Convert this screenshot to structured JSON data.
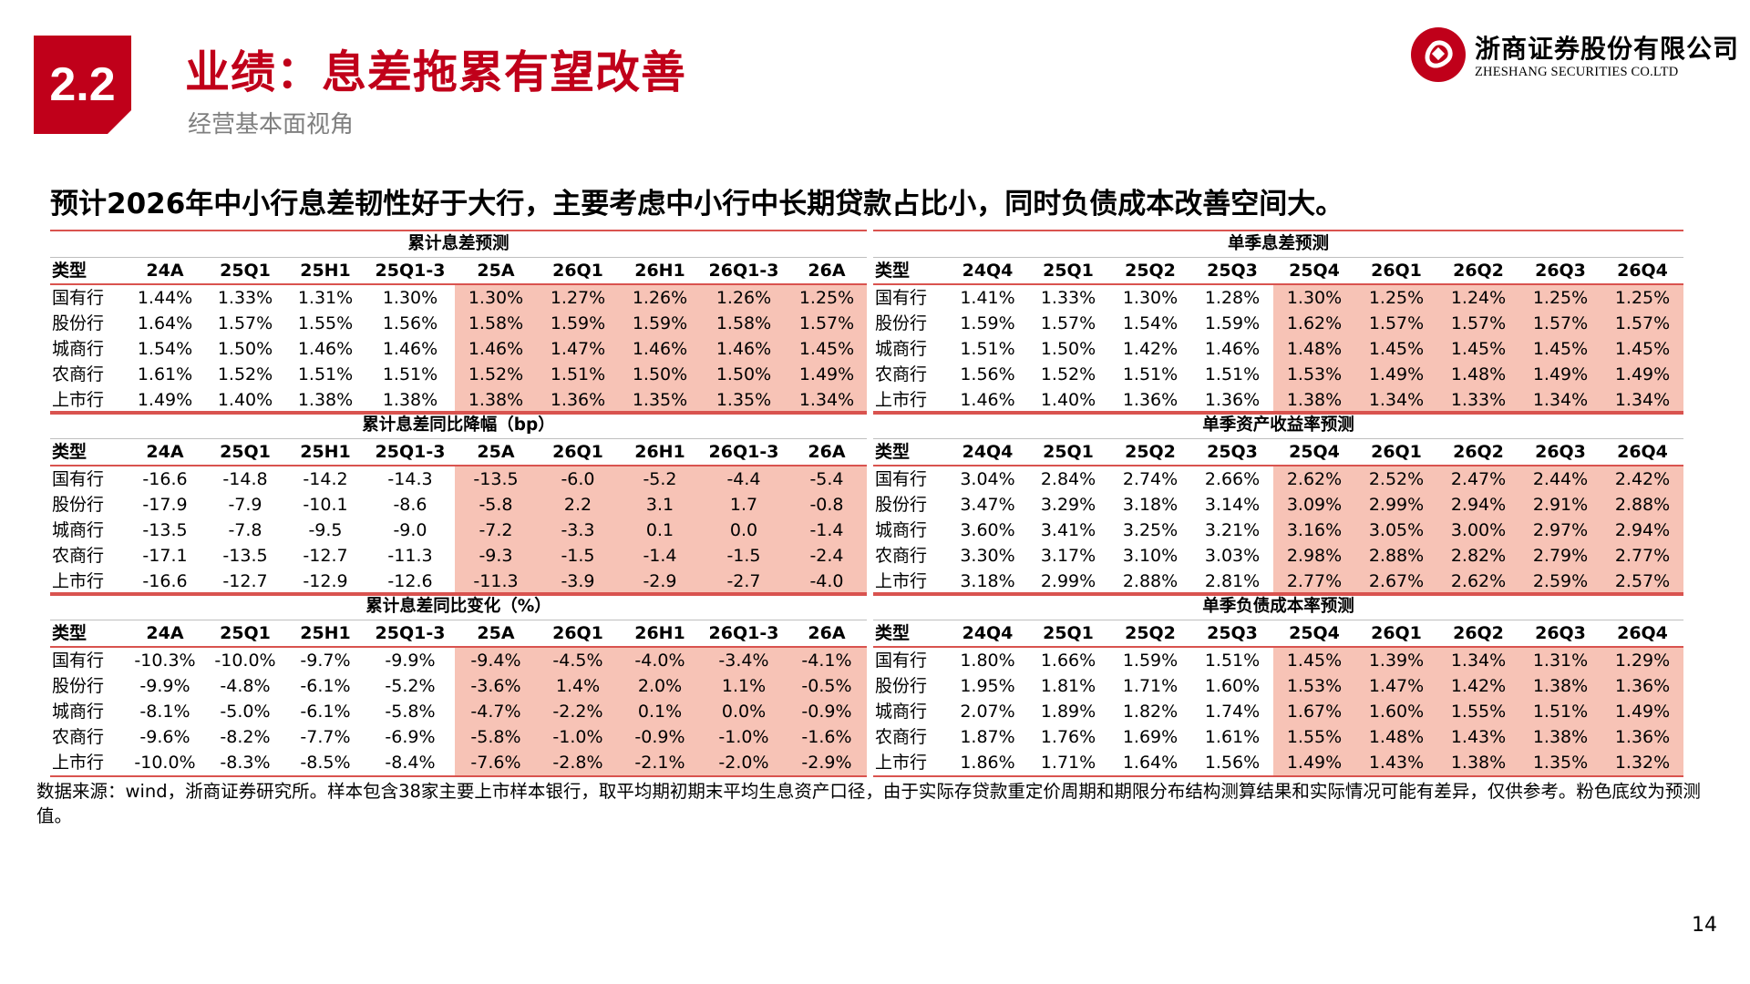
{
  "header": {
    "section": "2.2",
    "title": "业绩：息差拖累有望改善",
    "subtitle": "经营基本面视角",
    "company_cn": "浙商证券股份有限公司",
    "company_en": "ZHESHANG SECURITIES CO.LTD"
  },
  "headline": "预计2026年中小行息差韧性好于大行，主要考虑中小行中长期贷款占比小，同时负债成本改善空间大。",
  "colors": {
    "accent": "#c0001a",
    "forecast_fill": "#f7c3b6",
    "rule": "#d9534f"
  },
  "tables": {
    "t1": {
      "title": "累计息差预测",
      "columns": [
        "类型",
        "24A",
        "25Q1",
        "25H1",
        "25Q1-3",
        "25A",
        "26Q1",
        "26H1",
        "26Q1-3",
        "26A"
      ],
      "rows": [
        [
          "国有行",
          "1.44%",
          "1.33%",
          "1.31%",
          "1.30%",
          "1.30%",
          "1.27%",
          "1.26%",
          "1.26%",
          "1.25%"
        ],
        [
          "股份行",
          "1.64%",
          "1.57%",
          "1.55%",
          "1.56%",
          "1.58%",
          "1.59%",
          "1.59%",
          "1.58%",
          "1.57%"
        ],
        [
          "城商行",
          "1.54%",
          "1.50%",
          "1.46%",
          "1.46%",
          "1.46%",
          "1.47%",
          "1.46%",
          "1.46%",
          "1.45%"
        ],
        [
          "农商行",
          "1.61%",
          "1.52%",
          "1.51%",
          "1.51%",
          "1.52%",
          "1.51%",
          "1.50%",
          "1.50%",
          "1.49%"
        ],
        [
          "上市行",
          "1.49%",
          "1.40%",
          "1.38%",
          "1.38%",
          "1.38%",
          "1.36%",
          "1.35%",
          "1.35%",
          "1.34%"
        ]
      ]
    },
    "t2": {
      "title": "累计息差同比降幅（bp）",
      "columns": [
        "类型",
        "24A",
        "25Q1",
        "25H1",
        "25Q1-3",
        "25A",
        "26Q1",
        "26H1",
        "26Q1-3",
        "26A"
      ],
      "rows": [
        [
          "国有行",
          "-16.6",
          "-14.8",
          "-14.2",
          "-14.3",
          "-13.5",
          "-6.0",
          "-5.2",
          "-4.4",
          "-5.4"
        ],
        [
          "股份行",
          "-17.9",
          "-7.9",
          "-10.1",
          "-8.6",
          "-5.8",
          "2.2",
          "3.1",
          "1.7",
          "-0.8"
        ],
        [
          "城商行",
          "-13.5",
          "-7.8",
          "-9.5",
          "-9.0",
          "-7.2",
          "-3.3",
          "0.1",
          "0.0",
          "-1.4"
        ],
        [
          "农商行",
          "-17.1",
          "-13.5",
          "-12.7",
          "-11.3",
          "-9.3",
          "-1.5",
          "-1.4",
          "-1.5",
          "-2.4"
        ],
        [
          "上市行",
          "-16.6",
          "-12.7",
          "-12.9",
          "-12.6",
          "-11.3",
          "-3.9",
          "-2.9",
          "-2.7",
          "-4.0"
        ]
      ]
    },
    "t3": {
      "title": "累计息差同比变化（%）",
      "columns": [
        "类型",
        "24A",
        "25Q1",
        "25H1",
        "25Q1-3",
        "25A",
        "26Q1",
        "26H1",
        "26Q1-3",
        "26A"
      ],
      "rows": [
        [
          "国有行",
          "-10.3%",
          "-10.0%",
          "-9.7%",
          "-9.9%",
          "-9.4%",
          "-4.5%",
          "-4.0%",
          "-3.4%",
          "-4.1%"
        ],
        [
          "股份行",
          "-9.9%",
          "-4.8%",
          "-6.1%",
          "-5.2%",
          "-3.6%",
          "1.4%",
          "2.0%",
          "1.1%",
          "-0.5%"
        ],
        [
          "城商行",
          "-8.1%",
          "-5.0%",
          "-6.1%",
          "-5.8%",
          "-4.7%",
          "-2.2%",
          "0.1%",
          "0.0%",
          "-0.9%"
        ],
        [
          "农商行",
          "-9.6%",
          "-8.2%",
          "-7.7%",
          "-6.9%",
          "-5.8%",
          "-1.0%",
          "-0.9%",
          "-1.0%",
          "-1.6%"
        ],
        [
          "上市行",
          "-10.0%",
          "-8.3%",
          "-8.5%",
          "-8.4%",
          "-7.6%",
          "-2.8%",
          "-2.1%",
          "-2.0%",
          "-2.9%"
        ]
      ]
    },
    "t4": {
      "title": "单季息差预测",
      "columns": [
        "类型",
        "24Q4",
        "25Q1",
        "25Q2",
        "25Q3",
        "25Q4",
        "26Q1",
        "26Q2",
        "26Q3",
        "26Q4"
      ],
      "rows": [
        [
          "国有行",
          "1.41%",
          "1.33%",
          "1.30%",
          "1.28%",
          "1.30%",
          "1.25%",
          "1.24%",
          "1.25%",
          "1.25%"
        ],
        [
          "股份行",
          "1.59%",
          "1.57%",
          "1.54%",
          "1.59%",
          "1.62%",
          "1.57%",
          "1.57%",
          "1.57%",
          "1.57%"
        ],
        [
          "城商行",
          "1.51%",
          "1.50%",
          "1.42%",
          "1.46%",
          "1.48%",
          "1.45%",
          "1.45%",
          "1.45%",
          "1.45%"
        ],
        [
          "农商行",
          "1.56%",
          "1.52%",
          "1.51%",
          "1.51%",
          "1.53%",
          "1.49%",
          "1.48%",
          "1.49%",
          "1.49%"
        ],
        [
          "上市行",
          "1.46%",
          "1.40%",
          "1.36%",
          "1.36%",
          "1.38%",
          "1.34%",
          "1.33%",
          "1.34%",
          "1.34%"
        ]
      ]
    },
    "t5": {
      "title": "单季资产收益率预测",
      "columns": [
        "类型",
        "24Q4",
        "25Q1",
        "25Q2",
        "25Q3",
        "25Q4",
        "26Q1",
        "26Q2",
        "26Q3",
        "26Q4"
      ],
      "rows": [
        [
          "国有行",
          "3.04%",
          "2.84%",
          "2.74%",
          "2.66%",
          "2.62%",
          "2.52%",
          "2.47%",
          "2.44%",
          "2.42%"
        ],
        [
          "股份行",
          "3.47%",
          "3.29%",
          "3.18%",
          "3.14%",
          "3.09%",
          "2.99%",
          "2.94%",
          "2.91%",
          "2.88%"
        ],
        [
          "城商行",
          "3.60%",
          "3.41%",
          "3.25%",
          "3.21%",
          "3.16%",
          "3.05%",
          "3.00%",
          "2.97%",
          "2.94%"
        ],
        [
          "农商行",
          "3.30%",
          "3.17%",
          "3.10%",
          "3.03%",
          "2.98%",
          "2.88%",
          "2.82%",
          "2.79%",
          "2.77%"
        ],
        [
          "上市行",
          "3.18%",
          "2.99%",
          "2.88%",
          "2.81%",
          "2.77%",
          "2.67%",
          "2.62%",
          "2.59%",
          "2.57%"
        ]
      ]
    },
    "t6": {
      "title": "单季负债成本率预测",
      "columns": [
        "类型",
        "24Q4",
        "25Q1",
        "25Q2",
        "25Q3",
        "25Q4",
        "26Q1",
        "26Q2",
        "26Q3",
        "26Q4"
      ],
      "rows": [
        [
          "国有行",
          "1.80%",
          "1.66%",
          "1.59%",
          "1.51%",
          "1.45%",
          "1.39%",
          "1.34%",
          "1.31%",
          "1.29%"
        ],
        [
          "股份行",
          "1.95%",
          "1.81%",
          "1.71%",
          "1.60%",
          "1.53%",
          "1.47%",
          "1.42%",
          "1.38%",
          "1.36%"
        ],
        [
          "城商行",
          "2.07%",
          "1.89%",
          "1.82%",
          "1.74%",
          "1.67%",
          "1.60%",
          "1.55%",
          "1.51%",
          "1.49%"
        ],
        [
          "农商行",
          "1.87%",
          "1.76%",
          "1.69%",
          "1.61%",
          "1.55%",
          "1.48%",
          "1.43%",
          "1.38%",
          "1.36%"
        ],
        [
          "上市行",
          "1.86%",
          "1.71%",
          "1.64%",
          "1.56%",
          "1.49%",
          "1.43%",
          "1.38%",
          "1.35%",
          "1.32%"
        ]
      ]
    }
  },
  "source_note": "数据来源：wind，浙商证券研究所。样本包含38家主要上市样本银行，取平均期初期末平均生息资产口径，由于实际存贷款重定价周期和期限分布结构测算结果和实际情况可能有差异，仅供参考。粉色底纹为预测值。",
  "page_number": "14"
}
